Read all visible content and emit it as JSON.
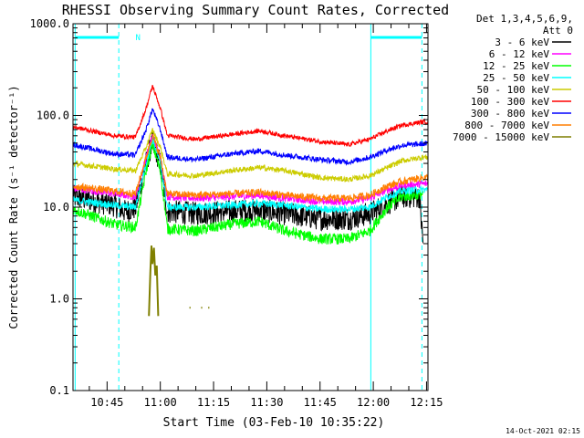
{
  "chart_data": {
    "type": "line",
    "title": "RHESSI Observing Summary Count Rates, Corrected",
    "xlabel": "Start Time (03-Feb-10 10:35:22)",
    "ylabel": "Corrected Count Rate (s⁻¹ detector⁻¹)",
    "y_scale": "log",
    "ylim": [
      0.1,
      1000
    ],
    "xlim_minutes_after_10_00": [
      35.4,
      135.4
    ],
    "ytick_labels": [
      "0.1",
      "1.0",
      "10.0",
      "100.0",
      "1000.0"
    ],
    "xtick_positions_minutes_after_10_00": [
      45,
      60,
      75,
      90,
      105,
      120,
      135
    ],
    "xtick_labels": [
      "10:45",
      "11:00",
      "11:15",
      "11:30",
      "11:45",
      "12:00",
      "12:15"
    ],
    "legend_header": [
      "Det 1,3,4,5,6,9,",
      "Att 0"
    ],
    "legend_position": "top-right, outside plot",
    "annotations": [
      {
        "text": "N",
        "x_time": "10:53",
        "color": "#00ffff"
      }
    ],
    "state_markers": {
      "color": "#00ffff",
      "solid_lines_minutes": [
        36.0,
        119.3
      ],
      "dashed_lines_minutes": [
        48.3,
        133.7
      ],
      "top_bars_minutes": [
        [
          36.0,
          48.3
        ],
        [
          119.3,
          133.7
        ]
      ]
    },
    "footer_timestamp": "14-Oct-2021 02:15",
    "series": [
      {
        "name": "3 - 6 keV",
        "color": "#000000",
        "noise": 0.13,
        "points": [
          [
            35.4,
            13
          ],
          [
            47,
            10.5
          ],
          [
            50,
            9
          ],
          [
            53,
            9.8
          ],
          [
            56,
            30
          ],
          [
            57.8,
            52
          ],
          [
            60,
            30
          ],
          [
            62,
            9
          ],
          [
            70,
            8.5
          ],
          [
            80,
            9
          ],
          [
            88,
            9.3
          ],
          [
            95,
            8.5
          ],
          [
            105,
            7.5
          ],
          [
            113,
            7.5
          ],
          [
            119,
            8.5
          ],
          [
            124,
            11
          ],
          [
            128,
            13
          ],
          [
            133,
            13
          ],
          [
            134,
            4
          ]
        ]
      },
      {
        "name": "6 - 12 keV",
        "color": "#ff00ff",
        "noise": 0.04,
        "points": [
          [
            35.4,
            16
          ],
          [
            47,
            14
          ],
          [
            53,
            13
          ],
          [
            56,
            35
          ],
          [
            57.8,
            60
          ],
          [
            60,
            35
          ],
          [
            62,
            13
          ],
          [
            70,
            12.5
          ],
          [
            80,
            13
          ],
          [
            88,
            13.5
          ],
          [
            95,
            12.5
          ],
          [
            105,
            11.5
          ],
          [
            113,
            11.5
          ],
          [
            119,
            12.5
          ],
          [
            124,
            15.5
          ],
          [
            128,
            17
          ],
          [
            134,
            18
          ],
          [
            135.4,
            18
          ]
        ]
      },
      {
        "name": "12 - 25 keV",
        "color": "#00ff00",
        "noise": 0.06,
        "points": [
          [
            35.4,
            9.5
          ],
          [
            47,
            6.5
          ],
          [
            53,
            6
          ],
          [
            56,
            25
          ],
          [
            57.8,
            48
          ],
          [
            60,
            25
          ],
          [
            62,
            5.8
          ],
          [
            70,
            5.5
          ],
          [
            80,
            6.5
          ],
          [
            88,
            7
          ],
          [
            95,
            5.5
          ],
          [
            105,
            4.5
          ],
          [
            113,
            4.5
          ],
          [
            119,
            5.5
          ],
          [
            124,
            10
          ],
          [
            128,
            13
          ],
          [
            134,
            14
          ]
        ]
      },
      {
        "name": "25 - 50 keV",
        "color": "#00ffff",
        "noise": 0.04,
        "points": [
          [
            35.4,
            12
          ],
          [
            47,
            10.5
          ],
          [
            53,
            10
          ],
          [
            56,
            30
          ],
          [
            57.8,
            56
          ],
          [
            60,
            30
          ],
          [
            62,
            10
          ],
          [
            70,
            10
          ],
          [
            80,
            10.5
          ],
          [
            88,
            11
          ],
          [
            95,
            10.5
          ],
          [
            105,
            9.5
          ],
          [
            113,
            9.5
          ],
          [
            119,
            10
          ],
          [
            124,
            13
          ],
          [
            128,
            15
          ],
          [
            134,
            15.5
          ],
          [
            135.4,
            15.5
          ]
        ]
      },
      {
        "name": "50 - 100 keV",
        "color": "#cccc00",
        "noise": 0.03,
        "points": [
          [
            35.4,
            30
          ],
          [
            47,
            26
          ],
          [
            53,
            25
          ],
          [
            56,
            45
          ],
          [
            57.8,
            70
          ],
          [
            60,
            45
          ],
          [
            62,
            23
          ],
          [
            70,
            22
          ],
          [
            80,
            25
          ],
          [
            88,
            27
          ],
          [
            95,
            25
          ],
          [
            105,
            21
          ],
          [
            113,
            20
          ],
          [
            119,
            22
          ],
          [
            124,
            27
          ],
          [
            128,
            32
          ],
          [
            134,
            35
          ],
          [
            135.4,
            35
          ]
        ]
      },
      {
        "name": "100 - 300 keV",
        "color": "#ff0000",
        "noise": 0.025,
        "points": [
          [
            35.4,
            75
          ],
          [
            47,
            60
          ],
          [
            53,
            58
          ],
          [
            56,
            120
          ],
          [
            57.8,
            210
          ],
          [
            60,
            120
          ],
          [
            62,
            60
          ],
          [
            70,
            55
          ],
          [
            80,
            62
          ],
          [
            88,
            68
          ],
          [
            95,
            60
          ],
          [
            105,
            52
          ],
          [
            113,
            48
          ],
          [
            119,
            55
          ],
          [
            124,
            68
          ],
          [
            128,
            78
          ],
          [
            134,
            85
          ],
          [
            135.4,
            85
          ]
        ]
      },
      {
        "name": "300 - 800 keV",
        "color": "#0000ff",
        "noise": 0.03,
        "points": [
          [
            35.4,
            48
          ],
          [
            47,
            38
          ],
          [
            53,
            37
          ],
          [
            56,
            70
          ],
          [
            57.8,
            118
          ],
          [
            60,
            70
          ],
          [
            62,
            35
          ],
          [
            70,
            33
          ],
          [
            80,
            38
          ],
          [
            88,
            41
          ],
          [
            95,
            37
          ],
          [
            105,
            33
          ],
          [
            113,
            31
          ],
          [
            119,
            35
          ],
          [
            124,
            42
          ],
          [
            128,
            47
          ],
          [
            134,
            49
          ],
          [
            135.4,
            49
          ]
        ]
      },
      {
        "name": "800 - 7000 keV",
        "color": "#ff7f00",
        "noise": 0.04,
        "points": [
          [
            35.4,
            17
          ],
          [
            47,
            15
          ],
          [
            53,
            14
          ],
          [
            56,
            35
          ],
          [
            57.8,
            60
          ],
          [
            60,
            35
          ],
          [
            62,
            14
          ],
          [
            70,
            13.5
          ],
          [
            80,
            14
          ],
          [
            88,
            14.5
          ],
          [
            95,
            13.5
          ],
          [
            105,
            12.5
          ],
          [
            113,
            12.5
          ],
          [
            119,
            13.5
          ],
          [
            124,
            17
          ],
          [
            128,
            19
          ],
          [
            134,
            21
          ],
          [
            135.4,
            21
          ]
        ]
      },
      {
        "name": "7000 - 15000 keV",
        "color": "#7f7f00",
        "noise": 0,
        "segments": [
          [
            [
              56.8,
              0.65
            ],
            [
              57.2,
              2.0
            ],
            [
              57.5,
              3.8
            ],
            [
              57.8,
              2.4
            ],
            [
              58.2,
              3.6
            ],
            [
              58.6,
              1.8
            ],
            [
              59.0,
              2.3
            ],
            [
              59.4,
              0.65
            ]
          ],
          [
            [
              68.2,
              0.8
            ],
            [
              68.5,
              0.8
            ]
          ],
          [
            [
              71.5,
              0.8
            ],
            [
              71.8,
              0.8
            ]
          ],
          [
            [
              73.5,
              0.8
            ],
            [
              73.8,
              0.8
            ]
          ]
        ]
      }
    ]
  }
}
